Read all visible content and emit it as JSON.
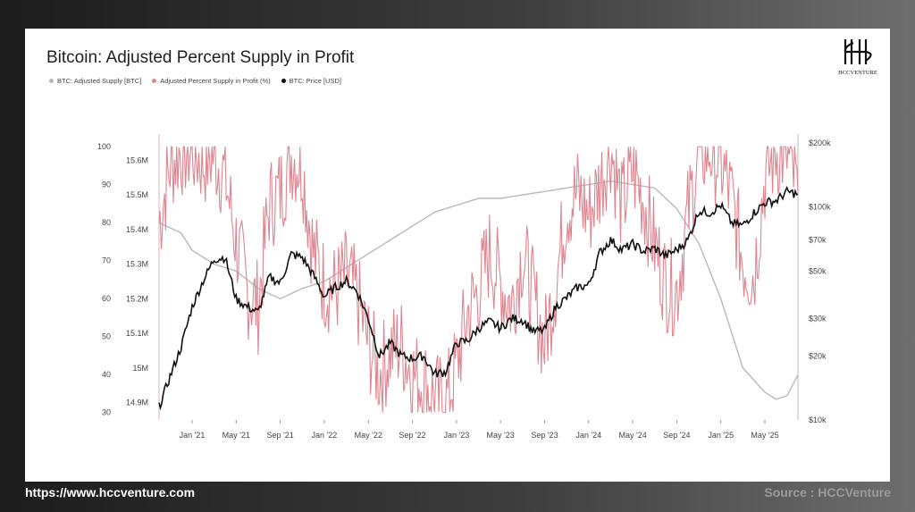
{
  "page": {
    "url": "https://www.hccventure.com",
    "source": "Source : HCCVenture"
  },
  "logo": {
    "letters": "HCCVENTURE"
  },
  "colors": {
    "supply": "#b9b9b9",
    "percent": "#de8590",
    "price": "#111111",
    "card": "#ffffff"
  },
  "chart_data": {
    "type": "line",
    "title": "Bitcoin: Adjusted Percent Supply in Profit",
    "legend_position": "top-left",
    "grid": true,
    "x_ticks": [
      "Jan '21",
      "May '21",
      "Sep '21",
      "Jan '22",
      "May '22",
      "Sep '22",
      "Jan '23",
      "May '23",
      "Sep '23",
      "Jan '24",
      "May '24",
      "Sep '24",
      "Jan '25",
      "May '25"
    ],
    "x_range": [
      "2020-10",
      "2025-08"
    ],
    "axes": {
      "percent": {
        "ticks": [
          "100",
          "90",
          "80",
          "70",
          "60",
          "50",
          "40",
          "30"
        ],
        "range": [
          28,
          101
        ]
      },
      "supply": {
        "ticks": [
          "15.6M",
          "15.5M",
          "15.4M",
          "15.3M",
          "15.2M",
          "15.1M",
          "15M",
          "14.9M"
        ],
        "range": [
          14.85,
          15.65
        ]
      },
      "price": {
        "ticks": [
          "$200k",
          "$100k",
          "$70k",
          "$50k",
          "$30k",
          "$20k",
          "$10k"
        ],
        "scale": "log",
        "range": [
          10000,
          200000
        ]
      }
    },
    "series": [
      {
        "name": "BTC: Adjusted Supply [BTC]",
        "color": "#b9b9b9",
        "unit": "M BTC",
        "x": [
          "2020-10",
          "2020-12",
          "2021-01",
          "2021-03",
          "2021-05",
          "2021-07",
          "2021-09",
          "2021-11",
          "2022-01",
          "2022-03",
          "2022-05",
          "2022-07",
          "2022-09",
          "2022-11",
          "2023-01",
          "2023-03",
          "2023-05",
          "2023-07",
          "2023-09",
          "2023-11",
          "2024-01",
          "2024-03",
          "2024-05",
          "2024-07",
          "2024-09",
          "2024-11",
          "2025-01",
          "2025-03",
          "2025-05",
          "2025-06",
          "2025-07",
          "2025-08"
        ],
        "values": [
          15.42,
          15.39,
          15.34,
          15.3,
          15.28,
          15.23,
          15.2,
          15.23,
          15.25,
          15.29,
          15.33,
          15.37,
          15.41,
          15.45,
          15.47,
          15.49,
          15.49,
          15.5,
          15.51,
          15.52,
          15.53,
          15.54,
          15.53,
          15.52,
          15.46,
          15.36,
          15.2,
          15.0,
          14.93,
          14.91,
          14.92,
          14.98
        ]
      },
      {
        "name": "Adjusted Percent Supply in Profit (%)",
        "color": "#de8590",
        "unit": "%",
        "x": [
          "2020-10",
          "2020-11",
          "2020-12",
          "2021-01",
          "2021-02",
          "2021-03",
          "2021-04",
          "2021-05",
          "2021-06",
          "2021-07",
          "2021-08",
          "2021-09",
          "2021-10",
          "2021-11",
          "2021-12",
          "2022-01",
          "2022-02",
          "2022-03",
          "2022-04",
          "2022-05",
          "2022-06",
          "2022-07",
          "2022-08",
          "2022-09",
          "2022-10",
          "2022-11",
          "2022-12",
          "2023-01",
          "2023-02",
          "2023-03",
          "2023-04",
          "2023-05",
          "2023-06",
          "2023-07",
          "2023-08",
          "2023-09",
          "2023-10",
          "2023-11",
          "2023-12",
          "2024-01",
          "2024-02",
          "2024-03",
          "2024-04",
          "2024-05",
          "2024-06",
          "2024-07",
          "2024-08",
          "2024-09",
          "2024-10",
          "2024-11",
          "2024-12",
          "2025-01",
          "2025-02",
          "2025-03",
          "2025-04",
          "2025-05",
          "2025-06",
          "2025-07",
          "2025-08"
        ],
        "values": [
          80,
          95,
          99,
          99,
          96,
          98,
          92,
          75,
          62,
          58,
          85,
          88,
          98,
          95,
          72,
          64,
          62,
          66,
          60,
          48,
          40,
          46,
          48,
          40,
          38,
          34,
          32,
          42,
          56,
          62,
          72,
          64,
          58,
          72,
          60,
          48,
          64,
          84,
          88,
          82,
          90,
          100,
          84,
          94,
          86,
          74,
          64,
          62,
          82,
          98,
          99,
          96,
          86,
          70,
          66,
          92,
          99,
          98,
          88
        ]
      },
      {
        "name": "BTC: Price [USD]",
        "color": "#111111",
        "unit": "USD",
        "x": [
          "2020-10",
          "2020-11",
          "2020-12",
          "2021-01",
          "2021-02",
          "2021-03",
          "2021-04",
          "2021-05",
          "2021-06",
          "2021-07",
          "2021-08",
          "2021-09",
          "2021-10",
          "2021-11",
          "2021-12",
          "2022-01",
          "2022-02",
          "2022-03",
          "2022-04",
          "2022-05",
          "2022-06",
          "2022-07",
          "2022-08",
          "2022-09",
          "2022-10",
          "2022-11",
          "2022-12",
          "2023-01",
          "2023-02",
          "2023-03",
          "2023-04",
          "2023-05",
          "2023-06",
          "2023-07",
          "2023-08",
          "2023-09",
          "2023-10",
          "2023-11",
          "2023-12",
          "2024-01",
          "2024-02",
          "2024-03",
          "2024-04",
          "2024-05",
          "2024-06",
          "2024-07",
          "2024-08",
          "2024-09",
          "2024-10",
          "2024-11",
          "2024-12",
          "2025-01",
          "2025-02",
          "2025-03",
          "2025-04",
          "2025-05",
          "2025-06",
          "2025-07",
          "2025-08"
        ],
        "values": [
          11500,
          16000,
          22000,
          34000,
          45000,
          57000,
          58000,
          37000,
          34000,
          32000,
          47000,
          44000,
          60000,
          58000,
          48000,
          38000,
          42000,
          45000,
          40000,
          30000,
          20000,
          23000,
          20000,
          19500,
          20000,
          16500,
          16800,
          23000,
          23500,
          27000,
          29000,
          27000,
          30000,
          29500,
          26000,
          26500,
          34000,
          37500,
          42000,
          43000,
          61000,
          70000,
          63000,
          67000,
          62000,
          64000,
          59000,
          63000,
          70000,
          96000,
          94000,
          102000,
          84000,
          82000,
          94000,
          105000,
          107000,
          118000,
          115000
        ]
      }
    ]
  }
}
